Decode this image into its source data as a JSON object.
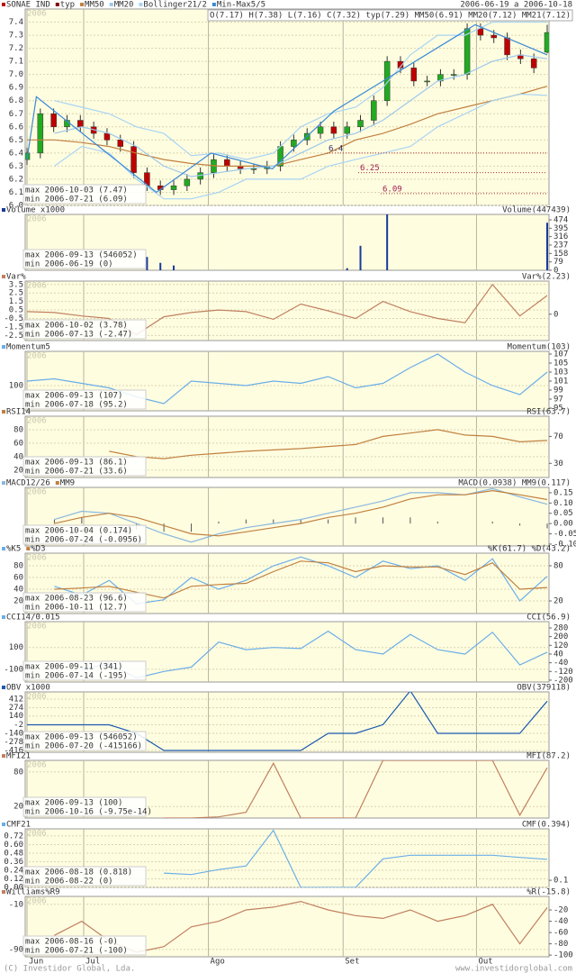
{
  "date_range": "2006-06-19 a 2006-10-18",
  "watermark": "2006",
  "xlim": [
    0,
    39
  ],
  "xticks": [
    {
      "value": 0,
      "label": "Jun"
    },
    {
      "value": 4.25,
      "label": "Jul"
    },
    {
      "value": 13.6,
      "label": "Ago"
    },
    {
      "value": 23.7,
      "label": "Set"
    },
    {
      "value": 33.7,
      "label": "Out"
    }
  ],
  "footer": {
    "left": "(C) Investidor Global, Lda.",
    "right": "www.investidorglobal.com"
  },
  "chart_data": [
    {
      "type": "candlestick",
      "series": [
        {
          "name": "SONAE IND",
          "color": "#c00000",
          "up_color": "#22aa22",
          "open": [
            6.35,
            6.4,
            6.7,
            6.6,
            6.65,
            6.6,
            6.55,
            6.5,
            6.45,
            6.25,
            6.15,
            6.12,
            6.15,
            6.2,
            6.25,
            6.35,
            6.3,
            6.28,
            6.28,
            6.3,
            6.45,
            6.5,
            6.55,
            6.6,
            6.55,
            6.6,
            6.65,
            6.8,
            7.1,
            7.05,
            6.95,
            6.95,
            7.0,
            7.0,
            7.35,
            7.3,
            7.28,
            7.15,
            7.12,
            7.17
          ],
          "high": [
            6.44,
            6.74,
            6.74,
            6.69,
            6.69,
            6.64,
            6.59,
            6.54,
            6.49,
            6.29,
            6.19,
            6.19,
            6.24,
            6.29,
            6.39,
            6.39,
            6.34,
            6.32,
            6.34,
            6.49,
            6.54,
            6.59,
            6.64,
            6.64,
            6.64,
            6.69,
            6.84,
            7.14,
            7.14,
            7.09,
            6.99,
            7.04,
            7.04,
            7.39,
            7.39,
            7.34,
            7.32,
            7.19,
            7.16,
            7.38
          ],
          "low": [
            6.31,
            6.36,
            6.56,
            6.56,
            6.56,
            6.51,
            6.46,
            6.41,
            6.21,
            6.11,
            6.08,
            6.08,
            6.11,
            6.16,
            6.21,
            6.26,
            6.24,
            6.24,
            6.24,
            6.26,
            6.41,
            6.46,
            6.51,
            6.51,
            6.51,
            6.56,
            6.61,
            6.76,
            7.01,
            6.91,
            6.91,
            6.91,
            6.96,
            6.96,
            7.26,
            7.24,
            7.11,
            7.08,
            7.01,
            7.16
          ],
          "close": [
            6.4,
            6.7,
            6.6,
            6.65,
            6.6,
            6.55,
            6.5,
            6.45,
            6.25,
            6.15,
            6.12,
            6.15,
            6.2,
            6.25,
            6.35,
            6.3,
            6.28,
            6.28,
            6.3,
            6.45,
            6.5,
            6.55,
            6.6,
            6.55,
            6.6,
            6.65,
            6.8,
            7.1,
            7.05,
            6.95,
            6.95,
            7.0,
            7.0,
            7.35,
            7.3,
            7.28,
            7.15,
            7.12,
            7.05,
            7.32
          ]
        },
        {
          "name": "typ",
          "color": "#800000"
        },
        {
          "name": "MM50",
          "color": "#c08040",
          "values": [
            6.5,
            6.5,
            6.48,
            6.45,
            6.4,
            6.35,
            6.32,
            6.3,
            6.3,
            6.3,
            6.35,
            6.4,
            6.5,
            6.55,
            6.62,
            6.7,
            6.75,
            6.8,
            6.85,
            6.91
          ]
        },
        {
          "name": "MM20",
          "color": "#9cc8ec",
          "values": [
            null,
            6.55,
            6.6,
            6.55,
            6.45,
            6.3,
            6.22,
            6.25,
            6.28,
            6.3,
            6.4,
            6.5,
            6.55,
            6.65,
            6.8,
            6.95,
            7.0,
            7.1,
            7.15,
            7.12
          ]
        },
        {
          "name": "Bollinger21/2",
          "color": "#a8d4f4",
          "upper": [
            null,
            6.8,
            6.75,
            6.7,
            6.6,
            6.55,
            6.38,
            6.4,
            6.35,
            6.4,
            6.6,
            6.7,
            6.75,
            6.9,
            7.15,
            7.3,
            7.3,
            7.4,
            7.4,
            7.4
          ],
          "lower": [
            null,
            6.3,
            6.45,
            6.4,
            6.2,
            6.05,
            6.05,
            6.1,
            6.2,
            6.2,
            6.2,
            6.3,
            6.35,
            6.4,
            6.45,
            6.6,
            6.7,
            6.8,
            6.85,
            6.84
          ]
        },
        {
          "name": "Min-Max5/5",
          "color": "#3a8ad8",
          "x": [
            0,
            0.7,
            9.7,
            13.8,
            18.4,
            23,
            33.6,
            39
          ],
          "values": [
            6.35,
            6.83,
            6.1,
            6.4,
            6.28,
            6.72,
            7.38,
            7.15
          ]
        }
      ],
      "readout": "O(7.17) H(7.38) L(7.16) C(7.32) typ(7.29) MM50(6.91) MM20(7.12) MM21(7.12)",
      "ylim": [
        6.0,
        7.5
      ],
      "yticks": [
        {
          "value": 6.0,
          "label": "6.0"
        },
        6.1,
        6.2,
        6.3,
        6.4,
        6.5,
        6.6,
        6.7,
        6.8,
        6.9,
        {
          "value": 7.0,
          "label": "7.0"
        },
        7.1,
        7.2,
        7.3,
        7.4
      ],
      "levels": [
        6.4,
        6.25,
        6.09
      ],
      "stats": [
        "max 2006-10-03 (7.47)",
        "min 2006-07-21 (6.09)"
      ]
    },
    {
      "type": "bar",
      "series": [
        {
          "name": "Volume x1000",
          "color": "#1a3a9a",
          "values": [
            0,
            0,
            0,
            0,
            0,
            0,
            0,
            0,
            0,
            125,
            70,
            45,
            0,
            0,
            0,
            0,
            0,
            0,
            0,
            0,
            0,
            0,
            0,
            0,
            20,
            230,
            0,
            546,
            0,
            0,
            0,
            0,
            0,
            0,
            0,
            0,
            0,
            0,
            0,
            447
          ]
        }
      ],
      "readout": "Volume(447439)",
      "ylim": [
        0,
        525
      ],
      "yticks_right": [
        0,
        79,
        158,
        237,
        316,
        395,
        474
      ],
      "stats": [
        "max 2006-09-13 (546052)",
        "min 2006-06-19 (0)"
      ]
    },
    {
      "type": "line",
      "series": [
        {
          "name": "Var%",
          "color": "#c08060",
          "values": [
            0.3,
            0.2,
            -0.2,
            -0.5,
            -2.4,
            -0.3,
            0.2,
            0.5,
            0.3,
            -0.6,
            1.2,
            0.4,
            -0.5,
            1.5,
            0.3,
            -0.5,
            -1.0,
            3.5,
            -0.2,
            2.2
          ]
        }
      ],
      "readout": "Var%(2.23)",
      "ylim": [
        -3.1,
        3.9
      ],
      "yticks": [
        3.5,
        2.5,
        1.5,
        0.5,
        -0.5,
        -1.5,
        -2.5
      ],
      "yticks_right": [
        0
      ],
      "stats": [
        "max 2006-10-02 (3.78)",
        "min 2006-07-13 (-2.47)"
      ]
    },
    {
      "type": "line",
      "series": [
        {
          "name": "Momentum5",
          "color": "#6aaee8",
          "values": [
            101,
            101.5,
            100.5,
            99.5,
            97.5,
            96,
            101,
            100.5,
            100,
            101,
            100.5,
            102,
            99.5,
            100.5,
            104,
            107,
            103,
            100,
            98,
            103
          ]
        }
      ],
      "readout": "Momentum(103)",
      "ylim": [
        94.4,
        107.6
      ],
      "yticks": [
        100
      ],
      "yticks_right": [
        107,
        105,
        103,
        101,
        99,
        97,
        95
      ],
      "stats": [
        "max 2006-09-13 (107)",
        "min 2006-07-18 (95.2)"
      ]
    },
    {
      "type": "line",
      "series": [
        {
          "name": "RSI14",
          "color": "#c08040",
          "values": [
            null,
            null,
            null,
            48,
            40,
            37,
            42,
            45,
            48,
            50,
            52,
            55,
            58,
            70,
            75,
            80,
            72,
            70,
            62,
            64
          ]
        }
      ],
      "readout": "RSI(63.7)",
      "ylim": [
        9,
        100
      ],
      "yticks": [
        20,
        40,
        60,
        80
      ],
      "yticks_right": [
        30,
        70
      ],
      "stats": [
        "max 2006-09-13 (86.1)",
        "min 2006-07-21 (33.6)"
      ]
    },
    {
      "type": "line",
      "series": [
        {
          "name": "MACD12/26",
          "color": "#8ab8e0",
          "values": [
            null,
            0.02,
            0.06,
            0.05,
            0.0,
            -0.05,
            -0.09,
            -0.05,
            -0.02,
            0.0,
            0.02,
            0.05,
            0.08,
            0.11,
            0.15,
            0.15,
            0.14,
            0.17,
            0.13,
            0.094
          ]
        },
        {
          "name": "MM9",
          "color": "#c08040",
          "values": [
            null,
            0.0,
            0.03,
            0.05,
            0.03,
            -0.01,
            -0.05,
            -0.06,
            -0.04,
            -0.02,
            0.0,
            0.03,
            0.05,
            0.08,
            0.12,
            0.14,
            0.14,
            0.16,
            0.14,
            0.117
          ]
        }
      ],
      "histogram": {
        "color": "#555555",
        "values": [
          null,
          0.02,
          0.03,
          0.0,
          -0.03,
          -0.04,
          -0.04,
          0.01,
          0.02,
          0.02,
          0.02,
          0.02,
          0.03,
          0.03,
          0.03,
          0.01,
          0.0,
          0.01,
          -0.01,
          -0.023
        ]
      },
      "readout": "MACD(0.0938) MM9(0.117)",
      "ylim": [
        -0.109,
        0.176
      ],
      "yticks_right": [
        0.15,
        {
          "value": 0.1,
          "label": "0.10"
        },
        0.05,
        {
          "value": 0.0,
          "label": "0.00"
        },
        -0.05,
        {
          "value": -0.1,
          "label": "-0.10"
        }
      ],
      "stats": [
        "max 2006-10-04 (0.174)",
        "min 2006-07-24 (-0.0956)"
      ]
    },
    {
      "type": "line",
      "series": [
        {
          "name": "%K5",
          "color": "#6aaee8",
          "values": [
            null,
            45,
            30,
            55,
            15,
            22,
            60,
            40,
            55,
            80,
            95,
            80,
            60,
            88,
            75,
            80,
            55,
            92,
            20,
            62
          ]
        },
        {
          "name": "%D3",
          "color": "#c08040",
          "values": [
            null,
            40,
            42,
            45,
            35,
            25,
            45,
            48,
            50,
            70,
            88,
            85,
            70,
            80,
            78,
            78,
            65,
            85,
            40,
            43
          ]
        }
      ],
      "readout": "%K(61.7) %D(43.2)",
      "ylim": [
        -1.5,
        101.5
      ],
      "yticks": [
        20,
        40,
        60,
        80
      ],
      "yticks_right": [
        20,
        80
      ],
      "stats": [
        "max 2006-08-23 (96.6)",
        "min 2006-10-11 (12.7)"
      ]
    },
    {
      "type": "line",
      "series": [
        {
          "name": "CCI14/0.015",
          "color": "#6aaee8",
          "values": [
            null,
            null,
            -100,
            -50,
            -180,
            -120,
            -80,
            150,
            80,
            100,
            90,
            250,
            80,
            40,
            220,
            80,
            40,
            240,
            -60,
            57
          ]
        }
      ],
      "readout": "CCI(56.9)",
      "ylim": [
        -217,
        338
      ],
      "yticks": [
        100,
        -100
      ],
      "yticks_right": [
        280,
        200,
        120,
        40,
        -40,
        -120,
        -200
      ],
      "stats": [
        "max 2006-09-11 (341)",
        "min 2006-07-14 (-195)"
      ]
    },
    {
      "type": "line",
      "series": [
        {
          "name": "OBV x1000",
          "color": "#1a5ab0",
          "values": [
            -2,
            -2,
            -2,
            -2,
            -140,
            -416,
            -416,
            -416,
            -416,
            -416,
            -416,
            -140,
            -140,
            0,
            546,
            -140,
            -140,
            -140,
            -140,
            379
          ]
        }
      ],
      "readout": "OBV(379118)",
      "ylim": [
        -445,
        528
      ],
      "yticks": [
        412,
        274,
        140,
        -2,
        -140,
        -278,
        -416
      ],
      "stats": [
        "max 2006-09-13 (546052)",
        "min 2006-07-20 (-415166)"
      ]
    },
    {
      "type": "line",
      "series": [
        {
          "name": "MFI21",
          "color": "#c08060",
          "values": [
            null,
            null,
            null,
            null,
            null,
            0,
            0,
            2,
            10,
            95,
            0,
            0,
            0,
            100,
            100,
            100,
            100,
            100,
            5,
            87.2
          ]
        }
      ],
      "readout": "MFI(87.2)",
      "ylim": [
        0,
        100
      ],
      "yticks": [
        80,
        20
      ],
      "stats": [
        "max 2006-09-13 (100)",
        "min 2006-10-16 (-9.75e-14)"
      ]
    },
    {
      "type": "line",
      "series": [
        {
          "name": "CMF21",
          "color": "#6aaee8",
          "values": [
            null,
            null,
            null,
            null,
            null,
            0.2,
            0.18,
            0.25,
            0.3,
            0.8,
            0,
            0,
            0,
            0.4,
            0.45,
            0.45,
            0.45,
            0.45,
            0.42,
            0.394
          ]
        }
      ],
      "readout": "CMF(0.394)",
      "ylim": [
        0,
        0.82
      ],
      "yticks": [
        0.72,
        {
          "value": 0.6,
          "label": "0.60"
        },
        0.48,
        0.36,
        0.24,
        0.12,
        {
          "value": 0.0,
          "label": "0.00"
        }
      ],
      "yticks_right": [
        0.1
      ],
      "stats": [
        "max 2006-08-18 (0.818)",
        "min 2006-08-22 (0)"
      ]
    },
    {
      "type": "line",
      "series": [
        {
          "name": "Williams%R9",
          "color": "#c08060",
          "values": [
            null,
            -65,
            -40,
            -75,
            -95,
            -85,
            -50,
            -40,
            -20,
            -15,
            -5,
            -20,
            -30,
            -35,
            -20,
            -40,
            -30,
            -10,
            -80,
            -15.8
          ]
        }
      ],
      "readout": "%R(-15.8)",
      "ylim": [
        -103,
        4
      ],
      "yticks": [
        -10,
        -90
      ],
      "yticks_right": [
        -20,
        -40,
        -60,
        -80,
        -100
      ],
      "stats": [
        "max 2006-08-16 (-0)",
        "min 2006-07-21 (-100)"
      ]
    }
  ]
}
